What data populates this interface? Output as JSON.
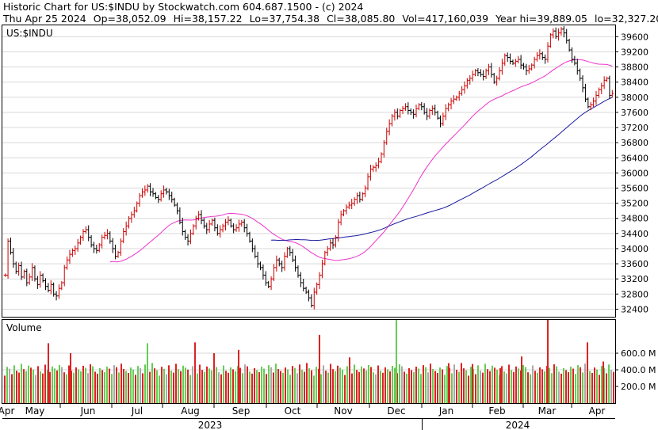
{
  "header": {
    "title_line": "Historic Chart for US:$INDU by Stockwatch.com 604.687.1500 - (c) 2024",
    "stats": [
      "Thu Apr 25 2024",
      "Op=38,052.09",
      "Hi=38,157.22",
      "Lo=37,754.38",
      "Cl=38,085.80",
      "Vol=417,160,039",
      "Year hi=39,889.05",
      "lo=32,327.20"
    ]
  },
  "colors": {
    "up": "#cc0000",
    "down": "#000000",
    "vol_up": "#66cc55",
    "vol_down": "#dd2222",
    "vol_flat": "#aaaaaa",
    "ma_short": "#ee33cc",
    "ma_long": "#1a1aa0",
    "grid": "#d9d9d9"
  },
  "chart_data": [
    {
      "type": "ohlc",
      "symbol_label": "US:$INDU",
      "ylim": [
        32200,
        39900
      ],
      "y_ticks": [
        32400,
        32800,
        33200,
        33600,
        34000,
        34400,
        34800,
        35200,
        35600,
        36000,
        36400,
        36800,
        37200,
        37600,
        38000,
        38400,
        38800,
        39200,
        39600
      ],
      "grid": true,
      "closes": [
        33300,
        34200,
        33900,
        33600,
        33400,
        33550,
        33250,
        33400,
        33100,
        33250,
        33500,
        33200,
        33050,
        33300,
        33150,
        33000,
        32900,
        33050,
        32800,
        32750,
        32950,
        33100,
        33500,
        33700,
        33850,
        33950,
        34000,
        34150,
        34300,
        34450,
        34500,
        34300,
        34100,
        34000,
        33950,
        34100,
        34300,
        34350,
        34400,
        34200,
        34000,
        33800,
        33900,
        34200,
        34450,
        34600,
        34800,
        34900,
        35000,
        35200,
        35400,
        35500,
        35550,
        35650,
        35500,
        35450,
        35350,
        35300,
        35450,
        35550,
        35500,
        35400,
        35300,
        35150,
        35000,
        34700,
        34450,
        34300,
        34200,
        34400,
        34600,
        34800,
        34900,
        34750,
        34600,
        34500,
        34650,
        34750,
        34550,
        34400,
        34500,
        34600,
        34700,
        34750,
        34600,
        34500,
        34550,
        34650,
        34700,
        34550,
        34400,
        34200,
        34000,
        33800,
        33600,
        33500,
        33300,
        33100,
        33000,
        33200,
        33500,
        33700,
        33600,
        33500,
        33800,
        34000,
        33900,
        33700,
        33500,
        33300,
        33100,
        32950,
        32850,
        32700,
        32500,
        32850,
        33050,
        33300,
        33600,
        33900,
        34000,
        34150,
        34100,
        34300,
        34700,
        34900,
        35000,
        35100,
        35150,
        35200,
        35300,
        35400,
        35300,
        35450,
        35600,
        35900,
        36100,
        36150,
        36200,
        36300,
        36500,
        36800,
        37100,
        37300,
        37500,
        37600,
        37500,
        37650,
        37700,
        37750,
        37650,
        37600,
        37550,
        37700,
        37800,
        37750,
        37600,
        37500,
        37650,
        37700,
        37600,
        37450,
        37300,
        37500,
        37700,
        37800,
        37900,
        37950,
        38000,
        38100,
        38200,
        38300,
        38450,
        38500,
        38600,
        38700,
        38650,
        38600,
        38550,
        38700,
        38800,
        38600,
        38400,
        38500,
        38700,
        38900,
        39100,
        39050,
        38950,
        38900,
        38950,
        39000,
        38850,
        38800,
        38700,
        38750,
        38850,
        39000,
        39100,
        39150,
        39050,
        39000,
        39350,
        39650,
        39750,
        39600,
        39700,
        39800,
        39700,
        39500,
        39250,
        39000,
        38900,
        38700,
        38500,
        38250,
        37950,
        37750,
        37800,
        37900,
        38050,
        38200,
        38300,
        38450,
        38500,
        38050,
        38100
      ]
    },
    {
      "type": "bar",
      "title": "Volume",
      "ylim": [
        0,
        1000000000
      ],
      "y_ticks": [
        200000000,
        400000000,
        600000000
      ],
      "y_tick_labels": [
        "200.0 M",
        "400.0 M",
        "600.0 M"
      ],
      "x_month_labels": [
        "Apr",
        "May",
        "Jun",
        "Jul",
        "Aug",
        "Sep",
        "Oct",
        "Nov",
        "Dec",
        "Jan",
        "Feb",
        "Mar",
        "Apr"
      ],
      "x_year_labels": [
        "2023",
        "2024"
      ],
      "spikes": [
        {
          "day": 60,
          "value": 720000000
        },
        {
          "day": 88,
          "value": 600000000
        },
        {
          "day": 245,
          "value": 730000000
        },
        {
          "day": 300,
          "value": 640000000
        },
        {
          "day": 402,
          "value": 820000000
        },
        {
          "day": 440,
          "value": 550000000
        },
        {
          "day": 499,
          "value": 1000000000
        },
        {
          "day": 565,
          "value": 480000000
        },
        {
          "day": 595,
          "value": 470000000
        },
        {
          "day": 630,
          "value": 420000000
        },
        {
          "day": 657,
          "value": 560000000
        },
        {
          "day": 690,
          "value": 1000000000
        },
        {
          "day": 760,
          "value": 500000000
        }
      ]
    }
  ]
}
